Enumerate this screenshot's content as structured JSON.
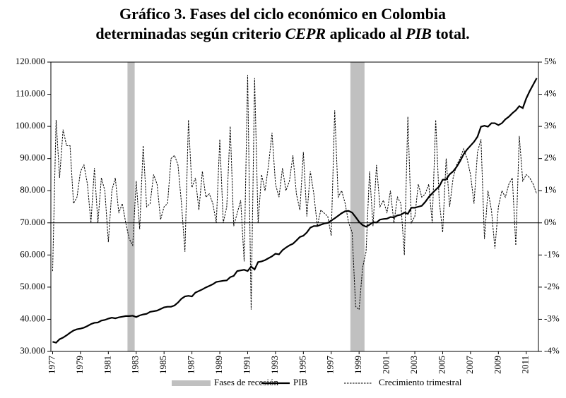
{
  "chart_data": {
    "type": "combo",
    "title": [
      [
        {
          "text": "Gráfico 3. Fases del ciclo económico en Colombia",
          "italic": false
        }
      ],
      [
        {
          "text": "determinadas según criterio ",
          "italic": false
        },
        {
          "text": "CEPR",
          "italic": true
        },
        {
          "text": " aplicado al ",
          "italic": false
        },
        {
          "text": "PIB",
          "italic": true
        },
        {
          "text": " total.",
          "italic": false
        }
      ]
    ],
    "categories": [
      "1977",
      null,
      null,
      null,
      null,
      null,
      null,
      null,
      "1979",
      null,
      null,
      null,
      null,
      null,
      null,
      null,
      "1981",
      null,
      null,
      null,
      null,
      null,
      null,
      null,
      "1983",
      null,
      null,
      null,
      null,
      null,
      null,
      null,
      "1985",
      null,
      null,
      null,
      null,
      null,
      null,
      null,
      "1987",
      null,
      null,
      null,
      null,
      null,
      null,
      null,
      "1989",
      null,
      null,
      null,
      null,
      null,
      null,
      null,
      "1991",
      null,
      null,
      null,
      null,
      null,
      null,
      null,
      "1993",
      null,
      null,
      null,
      null,
      null,
      null,
      null,
      "1995",
      null,
      null,
      null,
      null,
      null,
      null,
      null,
      "1997",
      null,
      null,
      null,
      null,
      null,
      null,
      null,
      "1999",
      null,
      null,
      null,
      null,
      null,
      null,
      null,
      "2001",
      null,
      null,
      null,
      null,
      null,
      null,
      null,
      "2003",
      null,
      null,
      null,
      null,
      null,
      null,
      null,
      "2005",
      null,
      null,
      null,
      null,
      null,
      null,
      null,
      "2007",
      null,
      null,
      null,
      null,
      null,
      null,
      null,
      "2009",
      null,
      null,
      null,
      null,
      null,
      null,
      null,
      "2011",
      null,
      null,
      null
    ],
    "series": [
      {
        "name": "Fases de recesión",
        "type": "bar",
        "color": "#c0c0c0",
        "values": [
          null,
          null,
          null,
          null,
          null,
          null,
          null,
          null,
          null,
          null,
          null,
          null,
          null,
          null,
          null,
          null,
          null,
          null,
          null,
          null,
          null,
          null,
          120000,
          120000,
          null,
          null,
          null,
          null,
          null,
          null,
          null,
          null,
          null,
          null,
          null,
          null,
          null,
          null,
          null,
          null,
          null,
          null,
          null,
          null,
          null,
          null,
          null,
          null,
          null,
          null,
          null,
          null,
          null,
          null,
          null,
          null,
          null,
          null,
          null,
          null,
          null,
          null,
          null,
          null,
          null,
          null,
          null,
          null,
          null,
          null,
          null,
          null,
          null,
          null,
          null,
          null,
          null,
          null,
          null,
          null,
          null,
          null,
          null,
          null,
          null,
          null,
          120000,
          120000,
          120000,
          120000,
          null,
          null,
          null,
          null,
          null,
          null,
          null,
          null,
          null,
          null,
          null,
          null,
          null,
          null,
          null,
          null,
          null,
          null,
          null,
          null,
          null,
          null,
          null,
          null,
          null,
          null,
          null,
          null,
          null,
          null,
          null,
          null,
          null,
          null,
          null,
          null,
          null,
          null,
          null,
          null,
          null,
          null,
          null,
          null,
          null,
          null,
          null,
          null,
          null,
          null
        ]
      },
      {
        "name": "PIB",
        "type": "line",
        "color": "#000000",
        "values": [
          33000,
          32700,
          33800,
          34300,
          35000,
          35800,
          36500,
          36900,
          37100,
          37400,
          37900,
          38500,
          38900,
          39000,
          39600,
          39800,
          40200,
          40500,
          40300,
          40600,
          40800,
          41000,
          41000,
          41100,
          40700,
          41200,
          41500,
          41700,
          42300,
          42500,
          42700,
          43200,
          43700,
          43900,
          43900,
          44300,
          45200,
          46400,
          47100,
          47300,
          47100,
          48300,
          48800,
          49300,
          49900,
          50400,
          50900,
          51600,
          51800,
          52000,
          52100,
          53100,
          53500,
          55000,
          55200,
          55400,
          55000,
          56400,
          55500,
          57800,
          58000,
          58400,
          59000,
          59600,
          60400,
          60200,
          61500,
          62300,
          63000,
          63500,
          64500,
          65600,
          66000,
          67000,
          68500,
          69000,
          69000,
          69400,
          69800,
          70000,
          70700,
          71400,
          72200,
          73000,
          73600,
          73700,
          73200,
          71800,
          70300,
          69300,
          68800,
          69400,
          70200,
          70100,
          71000,
          71200,
          71300,
          71800,
          71700,
          72300,
          72500,
          73200,
          72800,
          74700,
          74700,
          75000,
          75300,
          76500,
          78000,
          79200,
          80300,
          81300,
          83400,
          83500,
          85100,
          86000,
          87400,
          89200,
          91300,
          92800,
          94000,
          95200,
          96800,
          99900,
          100200,
          99900,
          101000,
          101000,
          100400,
          101000,
          102200,
          103000,
          104100,
          105000,
          106300,
          105700,
          108700,
          111000,
          113000,
          115000
        ]
      },
      {
        "name": "Crecimiento trimestral",
        "type": "line",
        "dashed": true,
        "axis": "y2",
        "color": "#000000",
        "values": [
          -1.5,
          3.2,
          1.4,
          2.9,
          2.4,
          2.4,
          0.6,
          0.8,
          1.6,
          1.8,
          1.2,
          0.0,
          1.7,
          0.0,
          1.4,
          1.0,
          -0.6,
          1.0,
          1.4,
          0.3,
          0.6,
          0.0,
          -0.5,
          -0.7,
          1.3,
          -0.2,
          2.4,
          0.5,
          0.6,
          1.5,
          1.2,
          0.1,
          0.5,
          0.6,
          2.0,
          2.1,
          1.8,
          0.6,
          -0.9,
          3.2,
          1.1,
          1.4,
          0.4,
          1.6,
          0.8,
          0.9,
          0.6,
          0.0,
          2.6,
          0.0,
          0.5,
          3.0,
          -0.1,
          0.3,
          0.7,
          -1.2,
          4.6,
          -2.7,
          4.5,
          0.0,
          1.5,
          1.0,
          1.8,
          2.8,
          1.2,
          0.8,
          1.7,
          1.0,
          1.3,
          2.1,
          0.9,
          0.4,
          2.2,
          0.2,
          1.6,
          0.9,
          -0.1,
          0.4,
          0.3,
          0.2,
          -0.4,
          3.5,
          0.8,
          1.0,
          0.6,
          0.0,
          -0.3,
          -2.6,
          -2.7,
          -1.4,
          -0.9,
          1.6,
          -0.1,
          1.8,
          0.5,
          0.7,
          0.3,
          1.0,
          0.0,
          0.8,
          0.6,
          -1.0,
          3.3,
          0.0,
          0.2,
          1.2,
          0.8,
          0.9,
          1.2,
          0.0,
          3.2,
          0.7,
          -0.3,
          2.0,
          0.5,
          1.4,
          1.8,
          2.0,
          2.3,
          2.0,
          1.5,
          0.6,
          2.2,
          2.6,
          -0.5,
          1.0,
          0.4,
          -0.8,
          0.5,
          1.0,
          0.8,
          1.2,
          1.4,
          -0.7,
          2.7,
          1.3,
          1.5,
          1.4,
          1.2,
          0.9
        ]
      }
    ],
    "ylim": [
      30000,
      120000
    ],
    "yticks": [
      {
        "value": 30000,
        "label": "30.000"
      },
      {
        "value": 40000,
        "label": "40.000"
      },
      {
        "value": 50000,
        "label": "50.000"
      },
      {
        "value": 60000,
        "label": "60.000"
      },
      {
        "value": 70000,
        "label": "70.000"
      },
      {
        "value": 80000,
        "label": "80.000"
      },
      {
        "value": 90000,
        "label": "90.000"
      },
      {
        "value": 100000,
        "label": "100.000"
      },
      {
        "value": 110000,
        "label": "110.000"
      },
      {
        "value": 120000,
        "label": "120.000"
      }
    ],
    "y2lim": [
      -4,
      5
    ],
    "y2ticks": [
      {
        "value": -4,
        "label": "-4%"
      },
      {
        "value": -3,
        "label": "-3%"
      },
      {
        "value": -2,
        "label": "-2%"
      },
      {
        "value": -1,
        "label": "-1%"
      },
      {
        "value": 0,
        "label": "0%"
      },
      {
        "value": 1,
        "label": "1%"
      },
      {
        "value": 2,
        "label": "2%"
      },
      {
        "value": 3,
        "label": "3%"
      },
      {
        "value": 4,
        "label": "4%"
      },
      {
        "value": 5,
        "label": "5%"
      }
    ],
    "xaxis_crosses": 70000,
    "legend": "bottom"
  }
}
